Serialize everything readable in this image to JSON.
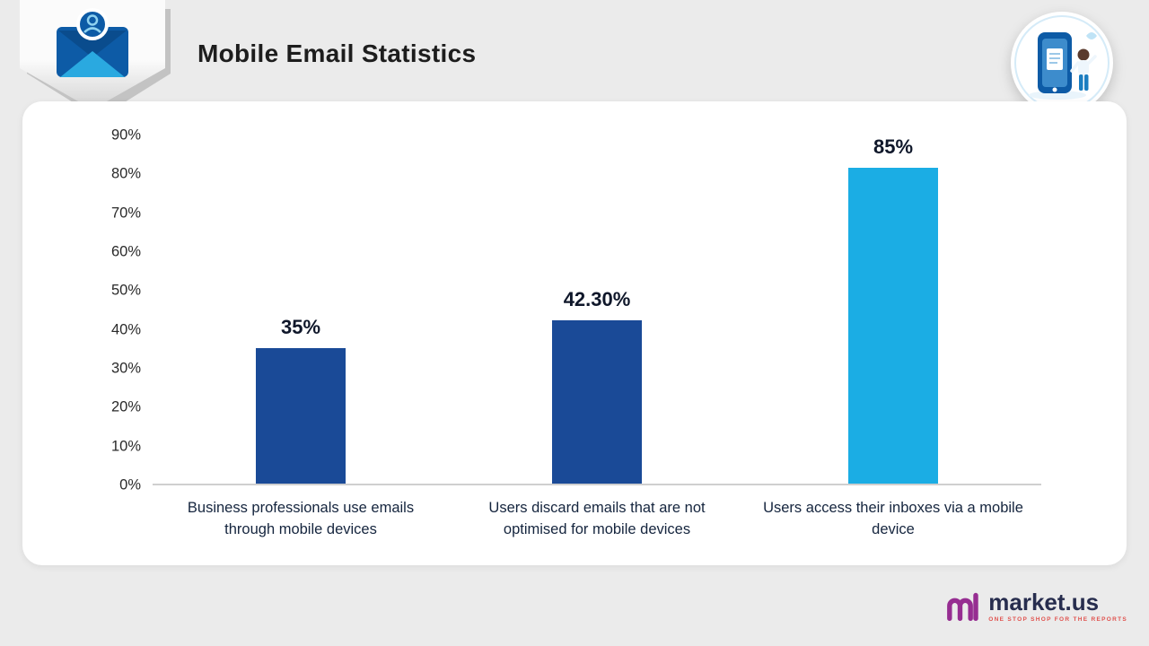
{
  "page": {
    "title": "Mobile Email Statistics"
  },
  "chart_data": {
    "type": "bar",
    "title": "Mobile Email Statistics",
    "categories": [
      "Business professionals use emails through mobile devices",
      "Users discard emails that are not optimised for mobile devices",
      "Users access their inboxes via a mobile device"
    ],
    "values": [
      35,
      42.3,
      85
    ],
    "value_labels": [
      "35%",
      "42.30%",
      "85%"
    ],
    "bar_colors": [
      "#1a4a97",
      "#1a4a97",
      "#1badе4"
    ],
    "bar_colors_fixed": [
      "#1a4a97",
      "#1a4a97",
      "#1bade4"
    ],
    "xlabel": "",
    "ylabel": "",
    "ylim": [
      0,
      90
    ],
    "ytick_labels": [
      "0%",
      "10%",
      "20%",
      "30%",
      "40%",
      "50%",
      "60%",
      "70%",
      "80%",
      "90%"
    ],
    "grid": false,
    "legend": "none"
  },
  "branding": {
    "logo_text": "market.us",
    "tagline": "ONE STOP SHOP FOR THE REPORTS"
  },
  "icons": {
    "header_badge": "email-envelope-user-icon",
    "corner_badge": "mobile-phone-person-illustration",
    "logo_mark": "marketus-m-mark"
  },
  "colors": {
    "background": "#ebebeb",
    "card": "#ffffff",
    "dark_bar": "#1a4a97",
    "light_bar": "#1bade4",
    "title_text": "#1d1d1d",
    "tagline_red": "#e0524e",
    "logo_purple": "#962d91"
  }
}
